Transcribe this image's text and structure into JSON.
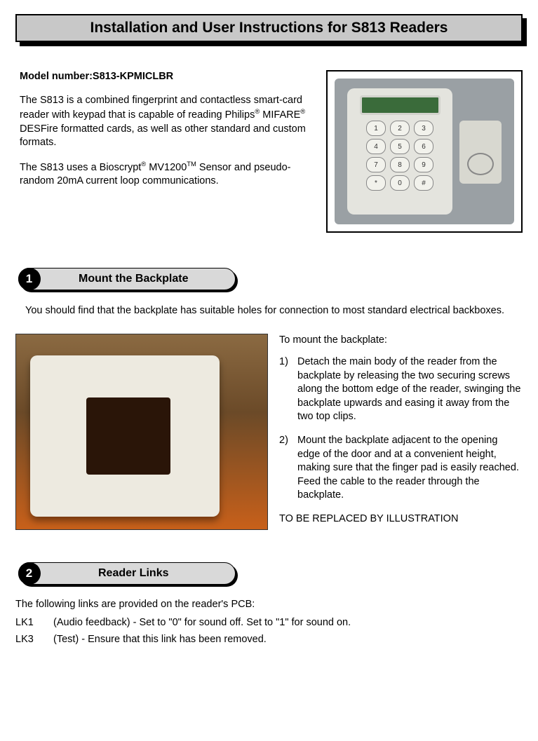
{
  "title": "Installation and User Instructions for S813 Readers",
  "colors": {
    "banner_bg": "#c8c8c8",
    "pill_bg": "#d9d9d9",
    "text": "#000000",
    "page_bg": "#ffffff"
  },
  "typography": {
    "title_fontsize_pt": 16,
    "body_fontsize_pt": 11,
    "section_title_fontsize_pt": 12,
    "family": "Arial"
  },
  "intro": {
    "model_label": "Model number:",
    "model_value": "S813-KPMICLBR",
    "p1_a": "The S813 is a combined fingerprint and contactless smart-card reader with keypad that is capable of reading Philips",
    "p1_b": " MIFARE",
    "p1_c": " DESFire formatted cards, as well as other standard and custom formats.",
    "p2_a": "The S813 uses a Bioscrypt",
    "p2_b": " MV1200",
    "p2_c": " Sensor and pseudo-random 20mA current loop communications.",
    "reg_mark": "®",
    "tm_mark": "TM"
  },
  "device_photo": {
    "keypad_keys": [
      "1",
      "2",
      "3",
      "4",
      "5",
      "6",
      "7",
      "8",
      "9",
      "*",
      "0",
      "#"
    ],
    "device_body_color": "#e4e4de",
    "screen_color": "#3a6b3a",
    "frame_border": "#000000",
    "bg_color": "#9aa0a4"
  },
  "section1": {
    "number": "1",
    "title": "Mount the Backplate",
    "intro": "You should find that the backplate has suitable holes for connection to most standard electrical backboxes.",
    "instr_head": "To mount the backplate:",
    "steps": [
      {
        "num": "1)",
        "text": "Detach the main body of the reader from the backplate by releasing the two securing screws along the bottom edge of the reader, swinging the backplate upwards and easing it away from the two top clips."
      },
      {
        "num": "2)",
        "text": "Mount the backplate adjacent to the opening edge of the door and at a convenient height, making sure that the finger pad is easily reached. Feed the cable to the reader through the backplate."
      }
    ],
    "placeholder": "TO BE REPLACED BY ILLUSTRATION",
    "photo": {
      "plate_color": "#edeae0",
      "hole_color": "#2a1508",
      "bg_gradient_top": "#8b6a42",
      "bg_gradient_bottom": "#c8601a"
    }
  },
  "section2": {
    "number": "2",
    "title": "Reader Links",
    "intro": "The following links are provided on the reader's PCB:",
    "links": [
      {
        "key": "LK1",
        "desc": "(Audio feedback) - Set to \"0\" for sound off. Set to \"1\" for sound on."
      },
      {
        "key": "LK3",
        "desc": "(Test) - Ensure that this link has been removed."
      }
    ]
  }
}
